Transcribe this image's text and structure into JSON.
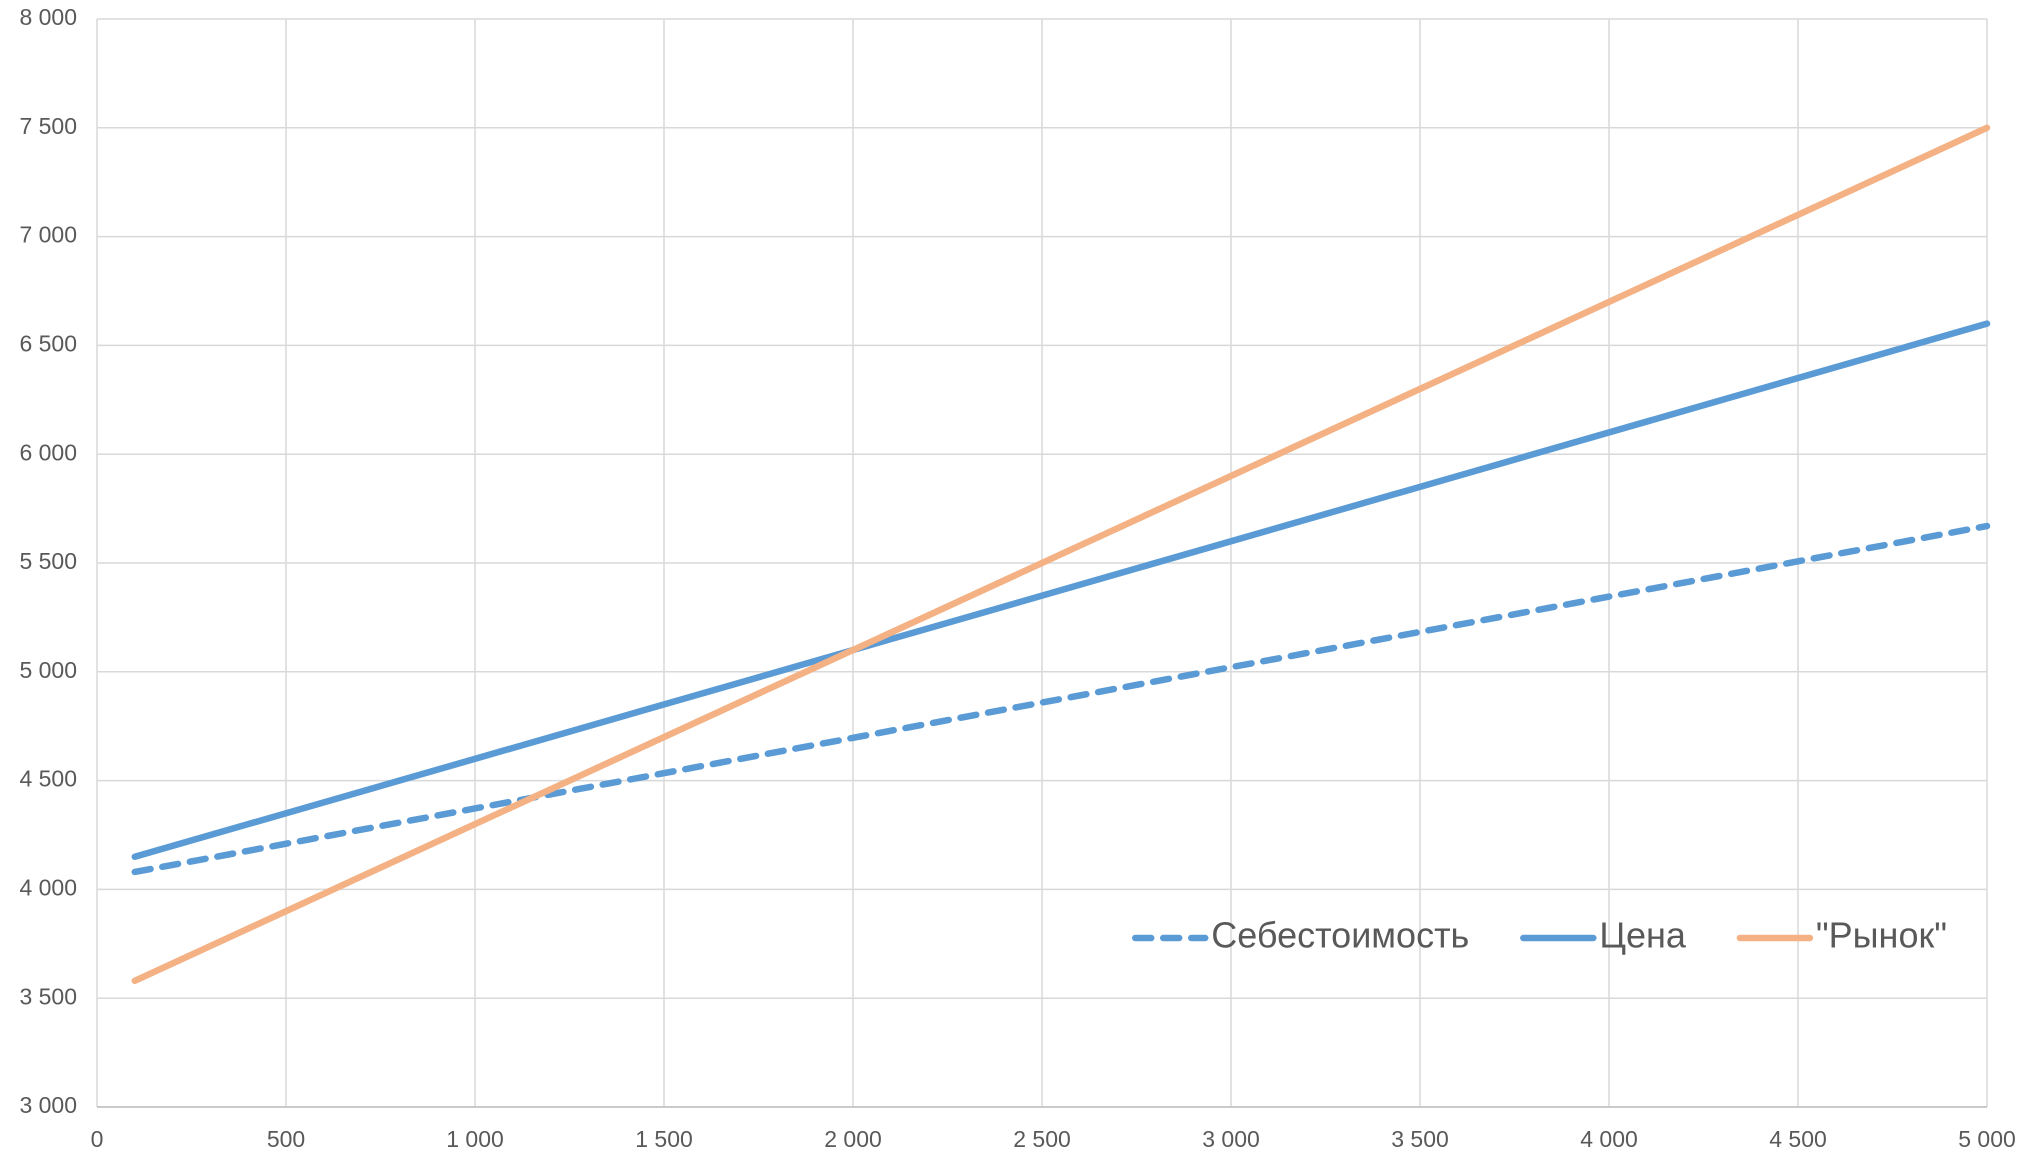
{
  "chart_data": {
    "type": "line",
    "x": [
      100,
      5000
    ],
    "series": [
      {
        "name": "Себестоимость",
        "color": "#5b9bd5",
        "style": "dashed",
        "values": [
          4080,
          5670
        ]
      },
      {
        "name": "Цена",
        "color": "#5b9bd5",
        "style": "solid",
        "values": [
          4150,
          6600
        ]
      },
      {
        "name": "\"Рынок\"",
        "color": "#f4b183",
        "style": "solid",
        "values": [
          3580,
          7500
        ]
      }
    ],
    "xlim": [
      0,
      5000
    ],
    "xticks": [
      0,
      500,
      {
        "value": 1000,
        "label": "1 000"
      },
      {
        "value": 1500,
        "label": "1 500"
      },
      {
        "value": 2000,
        "label": "2 000"
      },
      {
        "value": 2500,
        "label": "2 500"
      },
      {
        "value": 3000,
        "label": "3 000"
      },
      {
        "value": 3500,
        "label": "3 500"
      },
      {
        "value": 4000,
        "label": "4 000"
      },
      {
        "value": 4500,
        "label": "4 500"
      },
      {
        "value": 5000,
        "label": "5 000"
      }
    ],
    "ylim": [
      3000,
      8000
    ],
    "yticks": [
      {
        "value": 3000,
        "label": "3 000"
      },
      {
        "value": 3500,
        "label": "3 500"
      },
      {
        "value": 4000,
        "label": "4 000"
      },
      {
        "value": 4500,
        "label": "4 500"
      },
      {
        "value": 5000,
        "label": "5 000"
      },
      {
        "value": 5500,
        "label": "5 500"
      },
      {
        "value": 6000,
        "label": "6 000"
      },
      {
        "value": 6500,
        "label": "6 500"
      },
      {
        "value": 7000,
        "label": "7 000"
      },
      {
        "value": 7500,
        "label": "7 500"
      },
      {
        "value": 8000,
        "label": "8 000"
      }
    ],
    "grid": true,
    "legend": "lower right"
  }
}
